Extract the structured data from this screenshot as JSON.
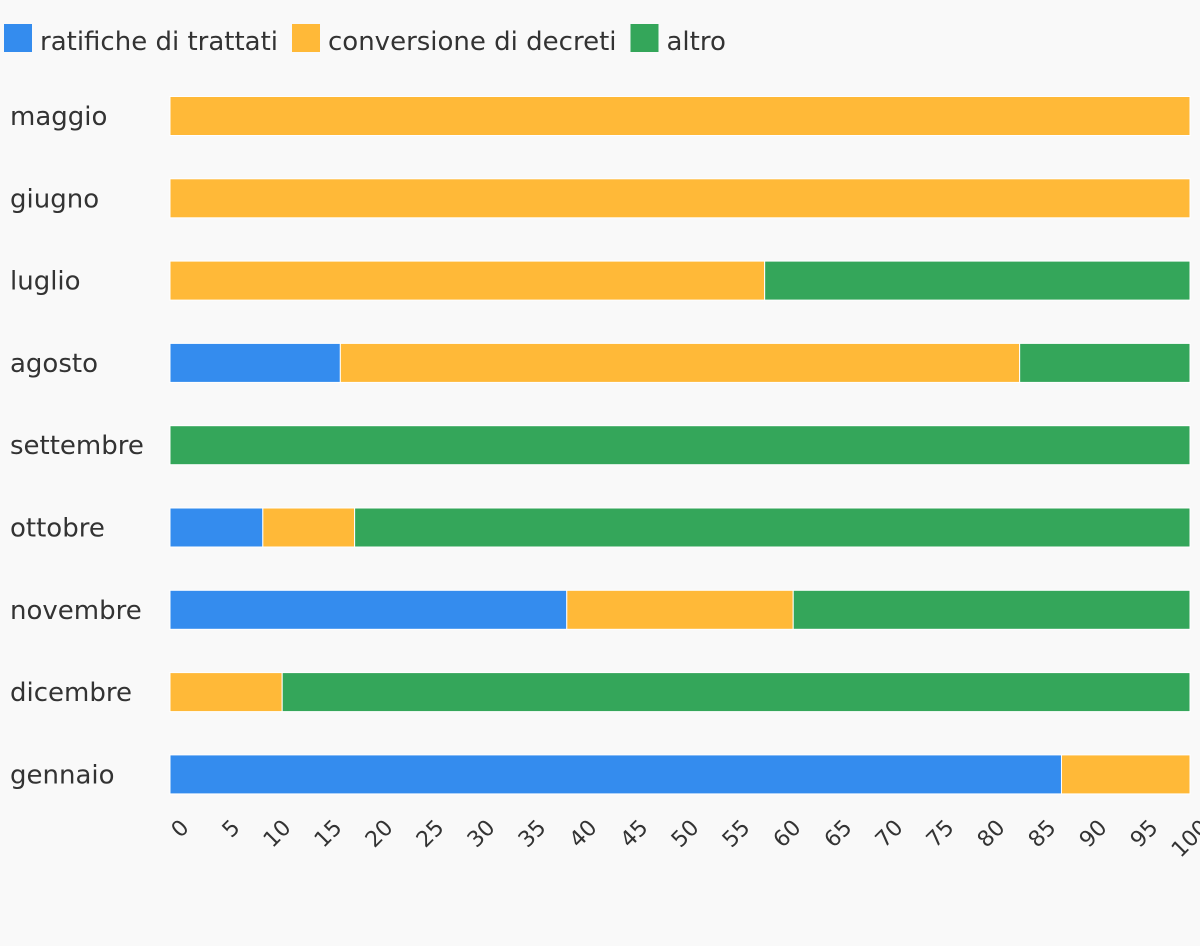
{
  "chart_data": {
    "type": "bar",
    "orientation": "horizontal",
    "stacked": true,
    "title": "",
    "xlabel": "",
    "ylabel": "",
    "xlim": [
      0,
      100
    ],
    "x_ticks": [
      0,
      5,
      10,
      15,
      20,
      25,
      30,
      35,
      40,
      45,
      50,
      55,
      60,
      65,
      70,
      75,
      80,
      85,
      90,
      95,
      100
    ],
    "grid": false,
    "legend_position": "top-left",
    "categories": [
      "maggio",
      "giugno",
      "luglio",
      "agosto",
      "settembre",
      "ottobre",
      "novembre",
      "dicembre",
      "gennaio"
    ],
    "series": [
      {
        "name": "ratifiche di trattati",
        "color": "#348cee",
        "values": [
          0,
          0,
          0,
          16.7,
          0,
          9.1,
          38.9,
          0,
          87.4
        ]
      },
      {
        "name": "conversione di decreti",
        "color": "#ffb938",
        "values": [
          100,
          100,
          58.3,
          66.6,
          0,
          9.0,
          22.2,
          11.0,
          12.6
        ]
      },
      {
        "name": "altro",
        "color": "#34a65a",
        "values": [
          0,
          0,
          41.7,
          16.7,
          100,
          81.9,
          38.9,
          89.0,
          0
        ]
      }
    ]
  }
}
